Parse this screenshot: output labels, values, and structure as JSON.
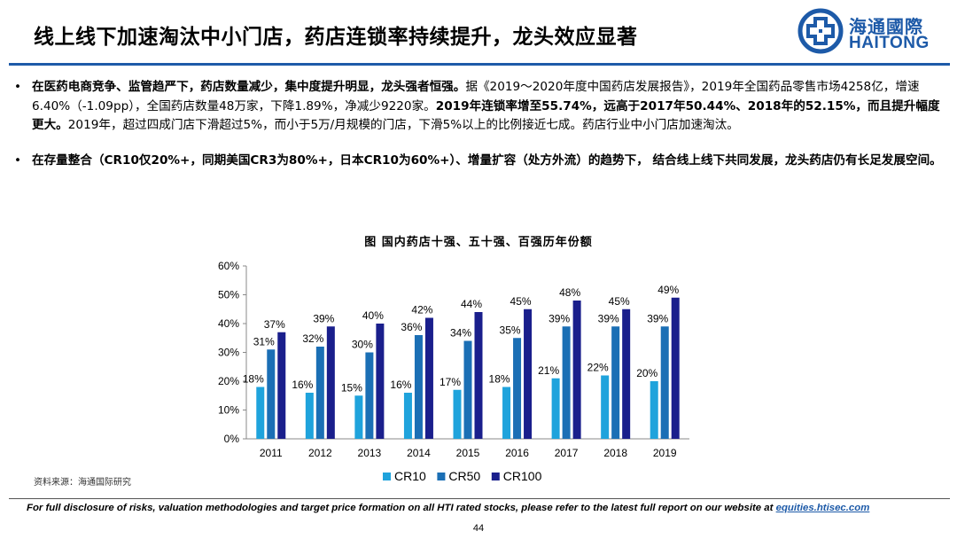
{
  "header": {
    "title": "线上线下加速淘汰中小门店，药店连锁率持续提升，龙头效应显著",
    "logo_cn": "海通國際",
    "logo_en": "HAITONG"
  },
  "bullets": [
    {
      "bold_1": "在医药电商竞争、监管趋严下，药店数量减少，集中度提升明显，龙头强者恒强。",
      "text_1": "据《2019～2020年度中国药店发展报告》，2019年全国药品零售市场4258亿，增速6.40%（-1.09pp），全国药店数量48万家，下降1.89%，净减少9220家。",
      "bold_2": "2019年连锁率增至55.74%，远高于2017年50.44%、2018年的52.15%，而且提升幅度更大。",
      "text_2": "2019年，超过四成门店下滑超过5%，而小于5万/月规模的门店，下滑5%以上的比例接近七成。药店行业中小门店加速淘汰。"
    },
    {
      "bold_1": "在存量整合（CR10仅20%+，同期美国CR3为80%+，日本CR10为60%+）、增量扩容（处方外流）的趋势下， 结合线上线下共同发展，龙头药店仍有长足发展空间。"
    }
  ],
  "chart_data": {
    "type": "bar",
    "title": "图 国内药店十强、五十强、百强历年份额",
    "categories": [
      "2011",
      "2012",
      "2013",
      "2014",
      "2015",
      "2016",
      "2017",
      "2018",
      "2019"
    ],
    "series": [
      {
        "name": "CR10",
        "color": "#1fa3dc",
        "values": [
          18,
          16,
          15,
          16,
          17,
          18,
          21,
          22,
          20
        ]
      },
      {
        "name": "CR50",
        "color": "#1b6fb5",
        "values": [
          31,
          32,
          30,
          36,
          34,
          35,
          39,
          39,
          39
        ]
      },
      {
        "name": "CR100",
        "color": "#1a1f8c",
        "values": [
          37,
          39,
          40,
          42,
          44,
          45,
          48,
          45,
          49
        ]
      }
    ],
    "ylim": [
      0,
      60
    ],
    "yticks": [
      "0%",
      "10%",
      "20%",
      "30%",
      "40%",
      "50%",
      "60%"
    ],
    "ytick_values": [
      0,
      10,
      20,
      30,
      40,
      50,
      60
    ],
    "data_labels": [
      [
        "18%",
        "16%",
        "15%",
        "16%",
        "17%",
        "18%",
        "21%",
        "22%",
        "20%"
      ],
      [
        "31%",
        "32%",
        "30%",
        "36%",
        "34%",
        "35%",
        "39%",
        "39%",
        "39%"
      ],
      [
        "37%",
        "39%",
        "40%",
        "42%",
        "44%",
        "45%",
        "48%",
        "45%",
        "49%"
      ]
    ],
    "legend_position": "bottom",
    "grid": false
  },
  "footer": {
    "source": "资料来源：海通国际研究",
    "disclaimer": "For full disclosure of risks, valuation methodologies and target price formation on all HTI rated stocks, please refer to the latest full report on our website at",
    "link": "equities.htisec.com",
    "page": "44"
  }
}
